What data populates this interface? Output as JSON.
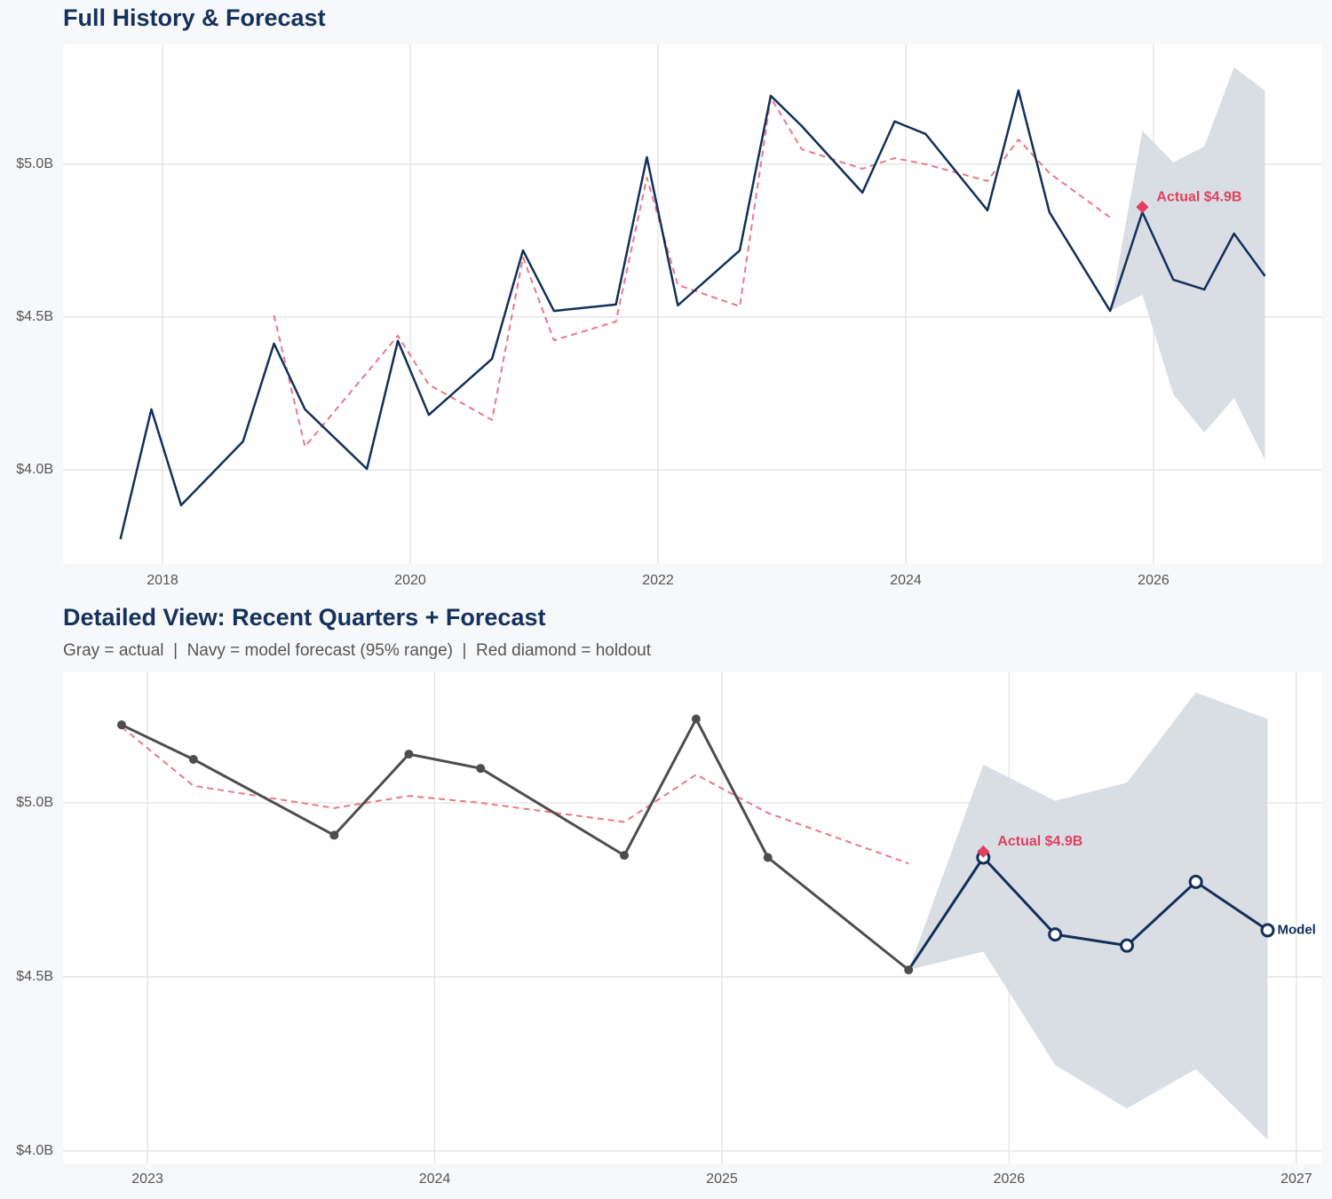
{
  "chart_data": [
    {
      "type": "line",
      "title": "Full History & Forecast",
      "xlim": [
        2017.197,
        2027.355
      ],
      "ylim": [
        3.692,
        5.392
      ],
      "xticks": [
        2018,
        2020,
        2022,
        2024,
        2026
      ],
      "yticks": [
        {
          "value": 4.0,
          "label": "$4.0B"
        },
        {
          "value": 4.5,
          "label": "$4.5B"
        },
        {
          "value": 5.0,
          "label": "$5.0B"
        }
      ],
      "grid": true,
      "band": {
        "color": "#d9dee5",
        "x": [
          2025.65,
          2025.91,
          2026.16,
          2026.41,
          2026.65,
          2026.9
        ],
        "upper": [
          4.52,
          5.11,
          5.006,
          5.058,
          5.317,
          5.241
        ],
        "lower": [
          4.52,
          4.573,
          4.247,
          4.122,
          4.235,
          4.032
        ]
      },
      "series": [
        {
          "color": "#e8798c",
          "dash": true,
          "x": [
            2018.9,
            2019.15,
            2019.9,
            2020.15,
            2020.66,
            2020.91,
            2021.16,
            2021.66,
            2021.91,
            2022.16,
            2022.66,
            2022.91,
            2023.16,
            2023.65,
            2023.91,
            2024.16,
            2024.66,
            2024.91,
            2025.16,
            2025.65
          ],
          "values": [
            4.506,
            4.076,
            4.439,
            4.279,
            4.163,
            4.695,
            4.424,
            4.485,
            4.956,
            4.605,
            4.535,
            5.218,
            5.049,
            4.985,
            5.02,
            5.0,
            4.945,
            5.081,
            4.971,
            4.826
          ]
        },
        {
          "color": "#12305a",
          "x": [
            2017.66,
            2017.91,
            2018.15,
            2018.65,
            2018.9,
            2019.15,
            2019.65,
            2019.9,
            2020.15,
            2020.66,
            2020.91,
            2021.16,
            2021.66,
            2021.91,
            2022.16,
            2022.66,
            2022.91,
            2023.16,
            2023.65,
            2023.91,
            2024.16,
            2024.66,
            2024.91,
            2025.16,
            2025.65,
            2025.91,
            2026.16,
            2026.41,
            2026.65,
            2026.9
          ],
          "values": [
            3.773,
            4.198,
            3.884,
            4.093,
            4.413,
            4.198,
            4.003,
            4.422,
            4.18,
            4.363,
            4.718,
            4.52,
            4.541,
            5.023,
            4.538,
            4.718,
            5.224,
            5.125,
            4.907,
            5.14,
            5.099,
            4.849,
            5.241,
            4.843,
            4.52,
            4.843,
            4.622,
            4.59,
            4.773,
            4.634
          ]
        }
      ],
      "holdout": {
        "x": 2025.91,
        "value": 4.86,
        "label": "Actual $4.9B",
        "color": "#e0405e"
      }
    },
    {
      "type": "line",
      "title": "Detailed View: Recent Quarters + Forecast",
      "subtitle": "Gray = actual  |  Navy = model forecast (95% range)  |  Red diamond = holdout",
      "xlim": [
        2022.706,
        2027.087
      ],
      "ylim": [
        3.964,
        5.375
      ],
      "xticks": [
        2023,
        2024,
        2025,
        2026,
        2027
      ],
      "yticks": [
        {
          "value": 4.0,
          "label": "$4.0B"
        },
        {
          "value": 4.5,
          "label": "$4.5B"
        },
        {
          "value": 5.0,
          "label": "$5.0B"
        }
      ],
      "grid": true,
      "band": {
        "color": "#d9dee5",
        "x": [
          2025.65,
          2025.91,
          2026.16,
          2026.41,
          2026.65,
          2026.9
        ],
        "upper": [
          4.52,
          5.11,
          5.006,
          5.058,
          5.317,
          5.241
        ],
        "lower": [
          4.52,
          4.573,
          4.247,
          4.122,
          4.235,
          4.032
        ]
      },
      "series": [
        {
          "color": "#e8798c",
          "dash": true,
          "x": [
            2022.91,
            2023.16,
            2023.65,
            2023.91,
            2024.16,
            2024.66,
            2024.91,
            2025.16,
            2025.65
          ],
          "values": [
            5.218,
            5.049,
            4.985,
            5.02,
            5.0,
            4.945,
            5.081,
            4.971,
            4.826
          ]
        },
        {
          "color": "#4d4d4d",
          "marker": "filled",
          "x": [
            2022.91,
            2023.16,
            2023.65,
            2023.91,
            2024.16,
            2024.66,
            2024.91,
            2025.16,
            2025.65
          ],
          "values": [
            5.224,
            5.125,
            4.907,
            5.14,
            5.099,
            4.849,
            5.241,
            4.843,
            4.52
          ]
        },
        {
          "color": "#12305a",
          "marker": "open",
          "end_label": "Model",
          "x": [
            2025.91,
            2026.16,
            2026.41,
            2026.65,
            2026.9
          ],
          "values": [
            4.843,
            4.622,
            4.59,
            4.773,
            4.634
          ]
        }
      ],
      "holdout": {
        "x": 2025.91,
        "value": 4.86,
        "label": "Actual $4.9B",
        "color": "#e0405e"
      }
    }
  ]
}
